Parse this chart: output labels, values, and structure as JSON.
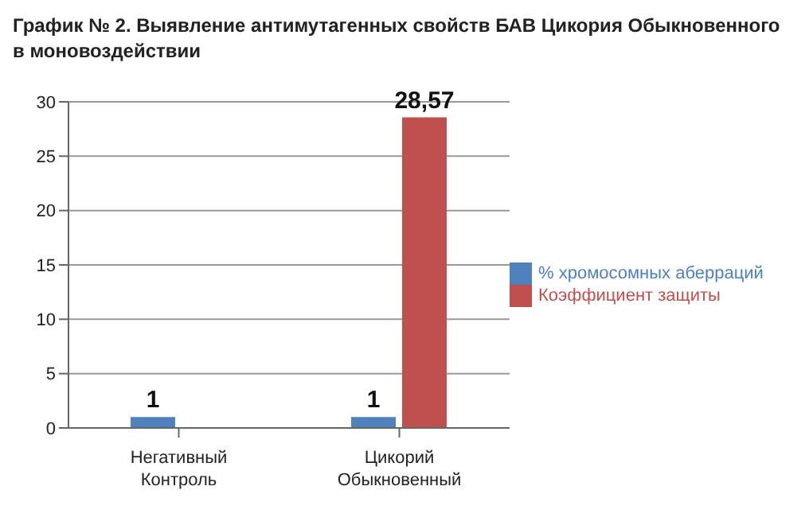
{
  "chart_data": {
    "type": "bar",
    "title": "График № 2. Выявление антимутагенных свойств БАВ Цикория Обыкновенного в моновоздействии",
    "categories": [
      "Негативный Контроль",
      "Цикорий Обыкновенный"
    ],
    "series": [
      {
        "name": "% хромосомных аберраций",
        "color": "#4f81bd",
        "values": [
          1,
          1
        ],
        "value_labels": [
          "1",
          "1"
        ]
      },
      {
        "name": "Коэффициент защиты",
        "color": "#c0504d",
        "values": [
          0,
          28.57
        ],
        "value_labels": [
          null,
          "28,57"
        ]
      }
    ],
    "ylim": [
      0,
      30
    ],
    "yticks": [
      0,
      5,
      10,
      15,
      20,
      25,
      30
    ],
    "grid": "y",
    "legend": "right"
  }
}
